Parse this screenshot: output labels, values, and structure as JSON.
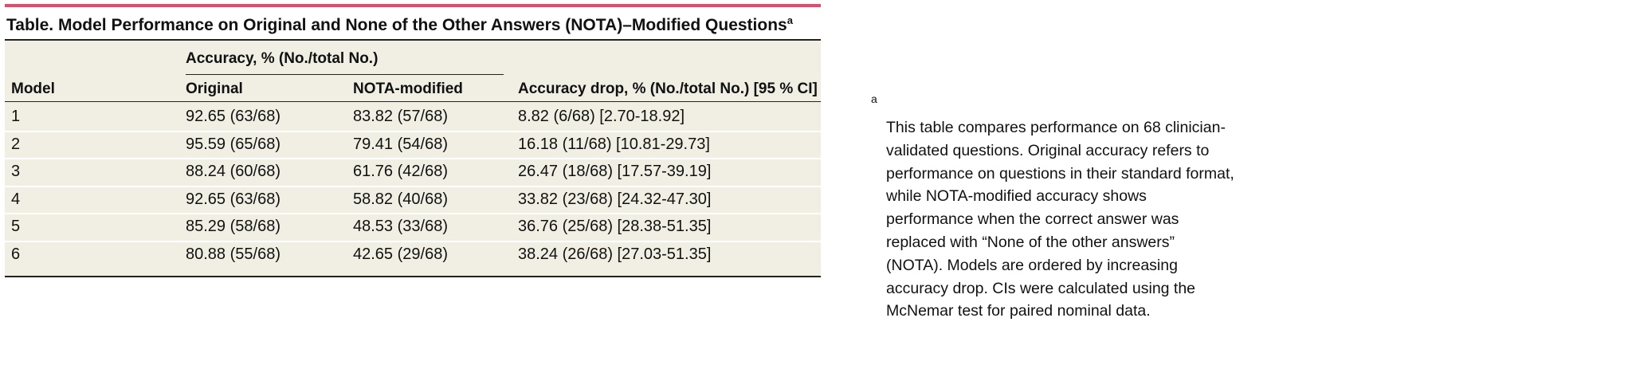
{
  "title": "Table. Model Performance on Original and None of the Other Answers (NOTA)–Modified Questions",
  "title_marker": "a",
  "table": {
    "group_header": "Accuracy, % (No./total No.)",
    "columns": [
      "Model",
      "Original",
      "NOTA-modified",
      "Accuracy drop, % (No./total No.) [95 % CI]"
    ],
    "rows": [
      [
        "1",
        "92.65 (63/68)",
        "83.82 (57/68)",
        "8.82 (6/68) [2.70-18.92]"
      ],
      [
        "2",
        "95.59 (65/68)",
        "79.41 (54/68)",
        "16.18 (11/68) [10.81-29.73]"
      ],
      [
        "3",
        "88.24 (60/68)",
        "61.76 (42/68)",
        "26.47 (18/68) [17.57-39.19]"
      ],
      [
        "4",
        "92.65 (63/68)",
        "58.82 (40/68)",
        "33.82 (23/68) [24.32-47.30]"
      ],
      [
        "5",
        "85.29 (58/68)",
        "48.53 (33/68)",
        "36.76 (25/68) [28.38-51.35]"
      ],
      [
        "6",
        "80.88 (55/68)",
        "42.65 (29/68)",
        "38.24 (26/68) [27.03-51.35]"
      ]
    ]
  },
  "footnote": {
    "marker": "a",
    "text": "This table compares performance on 68 clinician-validated questions. Original accuracy refers to performance on questions in their standard format, while NOTA-modified accuracy shows performance when the correct answer was replaced with “None of the other answers” (NOTA). Models are ordered by increasing accuracy drop. CIs were calculated using the McNemar test for paired nominal data."
  }
}
